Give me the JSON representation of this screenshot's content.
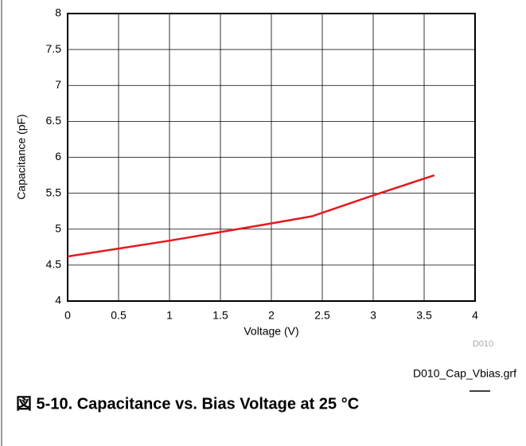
{
  "chart_data": {
    "type": "line",
    "x_label": "Voltage (V)",
    "y_label": "Capacitance (pF)",
    "source_tag": "D010",
    "file_name": "D010_Cap_Vbias.grf",
    "caption": "図 5-10. Capacitance vs. Bias Voltage at 25 °C",
    "x": [
      0,
      0.5,
      1,
      1.5,
      2,
      2.4,
      3,
      3.6
    ],
    "series": [
      {
        "name": "Capacitance",
        "color": "#e41a1c",
        "values": [
          4.62,
          4.73,
          4.84,
          4.96,
          5.08,
          5.18,
          5.47,
          5.75
        ]
      }
    ],
    "xlim": [
      0,
      4
    ],
    "xticks": [
      0,
      0.5,
      1,
      1.5,
      2,
      2.5,
      3,
      3.5,
      4
    ],
    "ylim": [
      4,
      8
    ],
    "yticks": [
      4,
      4.5,
      5,
      5.5,
      6,
      6.5,
      7,
      7.5,
      8
    ],
    "grid": true
  }
}
